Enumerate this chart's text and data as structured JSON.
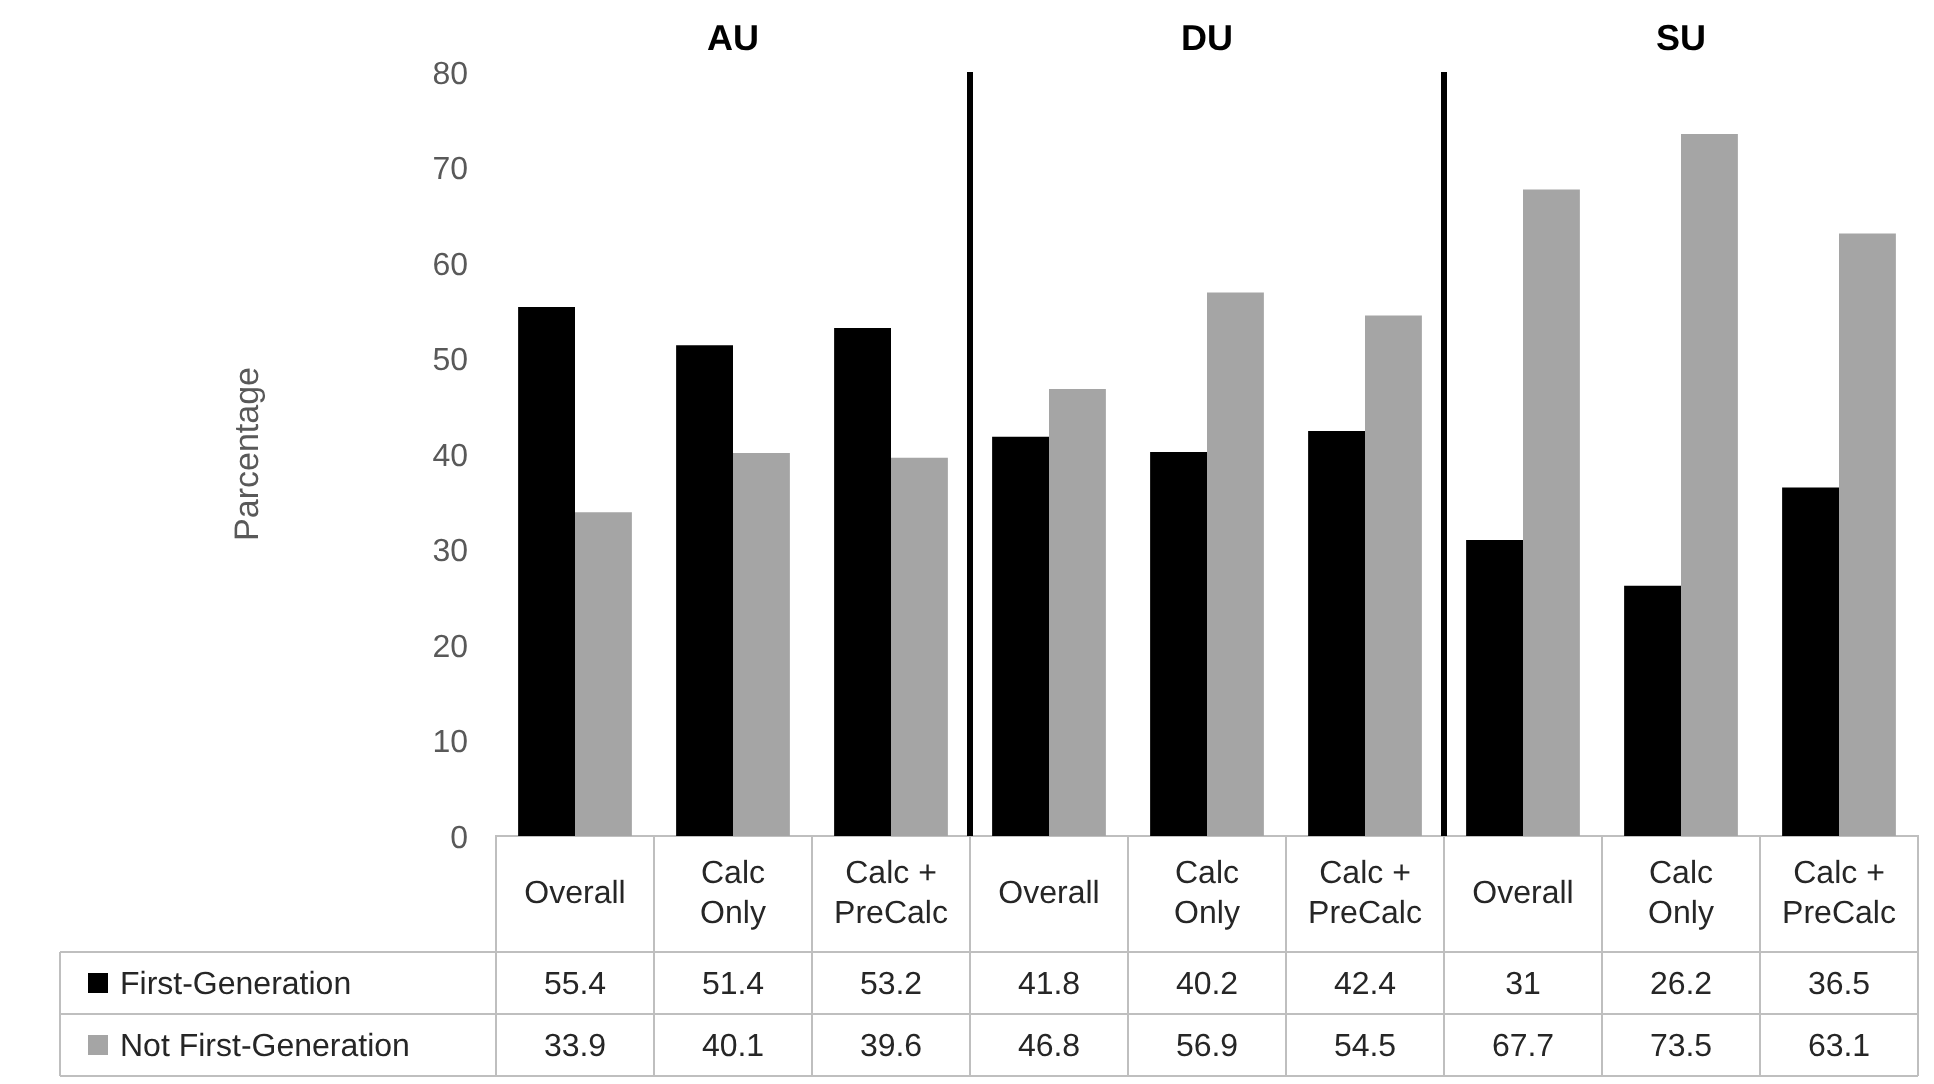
{
  "chart_data": {
    "type": "bar",
    "ylabel": "Parcentage",
    "categories": [
      "Overall",
      "Calc Only",
      "Calc + PreCalc",
      "Overall",
      "Calc Only",
      "Calc + PreCalc",
      "Overall",
      "Calc Only",
      "Calc + PreCalc"
    ],
    "series": [
      {
        "name": "First-Generation",
        "color": "#000000",
        "values": [
          55.4,
          51.4,
          53.2,
          41.8,
          40.2,
          42.4,
          31,
          26.2,
          36.5
        ]
      },
      {
        "name": "Not First-Generation",
        "color": "#a5a5a5",
        "values": [
          33.9,
          40.1,
          39.6,
          46.8,
          56.9,
          54.5,
          67.7,
          73.5,
          63.1
        ]
      }
    ],
    "annotations": [
      "AU",
      "DU",
      "SU"
    ],
    "ylim": [
      0,
      80
    ],
    "yticks": [
      0,
      10,
      20,
      30,
      40,
      50,
      60,
      70,
      80
    ],
    "grid": false,
    "legend": "bottom",
    "data_labels": true
  }
}
